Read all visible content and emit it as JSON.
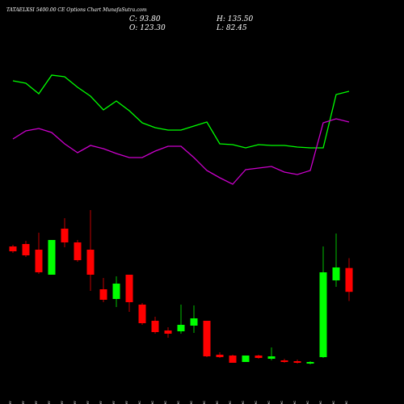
{
  "header": {
    "title": "TATAELXSI 5400.00 CE Options Chart MunafaSutra.com",
    "ohlc_labels": [
      "C: 93.80",
      "H: 135.50",
      "O: 123.30",
      "L: 82.45"
    ]
  },
  "chart_data": [
    {
      "type": "line",
      "ylim": [
        0,
        250
      ],
      "series": [
        {
          "color": "#00ff00",
          "values": [
            150,
            147,
            134,
            157,
            155,
            142,
            131,
            114,
            125,
            113,
            98,
            92,
            89,
            89,
            94,
            99,
            72,
            71,
            67,
            71,
            70,
            70,
            68,
            67,
            67,
            133,
            137
          ]
        },
        {
          "color": "#cc00cc",
          "values": [
            78,
            88,
            91,
            86,
            72,
            61,
            70,
            66,
            60,
            55,
            55,
            63,
            69,
            69,
            55,
            39,
            30,
            22,
            40,
            42,
            44,
            37,
            34,
            39,
            98,
            103,
            99
          ]
        }
      ]
    },
    {
      "type": "candlestick",
      "categories": [
        "14 Nov",
        "18 Nov",
        "19 Nov",
        "21 Nov",
        "22 Nov",
        "25 Nov",
        "26 Nov",
        "27 Nov",
        "28 Nov",
        "29 Nov",
        "02 Dec",
        "03 Dec",
        "04 Dec",
        "05 Dec",
        "06 Dec",
        "09 Dec",
        "10 Dec",
        "11 Dec",
        "12 Dec",
        "13 Dec",
        "16 Dec",
        "17 Dec",
        "18 Dec",
        "19 Dec",
        "20 Dec",
        "23 Dec",
        "24 Dec"
      ],
      "open": [
        150,
        153,
        146,
        115,
        172,
        155,
        146,
        97,
        85,
        115,
        78,
        58,
        46,
        45,
        52,
        58,
        16,
        15,
        7,
        15,
        11,
        9,
        8,
        5,
        13,
        108,
        123.3
      ],
      "high": [
        152,
        157,
        167,
        158,
        185,
        158,
        195,
        111,
        113,
        115,
        80,
        63,
        50,
        78,
        77,
        58,
        19,
        16,
        15,
        16,
        25,
        11,
        10,
        8,
        150,
        166,
        135.5
      ],
      "low": [
        142,
        137,
        116,
        115,
        149,
        131,
        95,
        81,
        75,
        69,
        53,
        42,
        37,
        42,
        43,
        13,
        12,
        6,
        7,
        11,
        9,
        6,
        5,
        4,
        12,
        100,
        82.45
      ],
      "close": [
        144,
        139,
        118,
        158,
        155,
        133,
        115,
        84,
        104,
        81,
        55,
        44,
        42,
        53,
        61,
        14,
        13,
        6,
        15,
        12,
        14,
        7,
        6,
        7,
        118,
        124,
        93.8
      ],
      "up_color": "#00ff00",
      "down_color": "#ff0000",
      "ylim": [
        -5,
        195
      ]
    }
  ]
}
